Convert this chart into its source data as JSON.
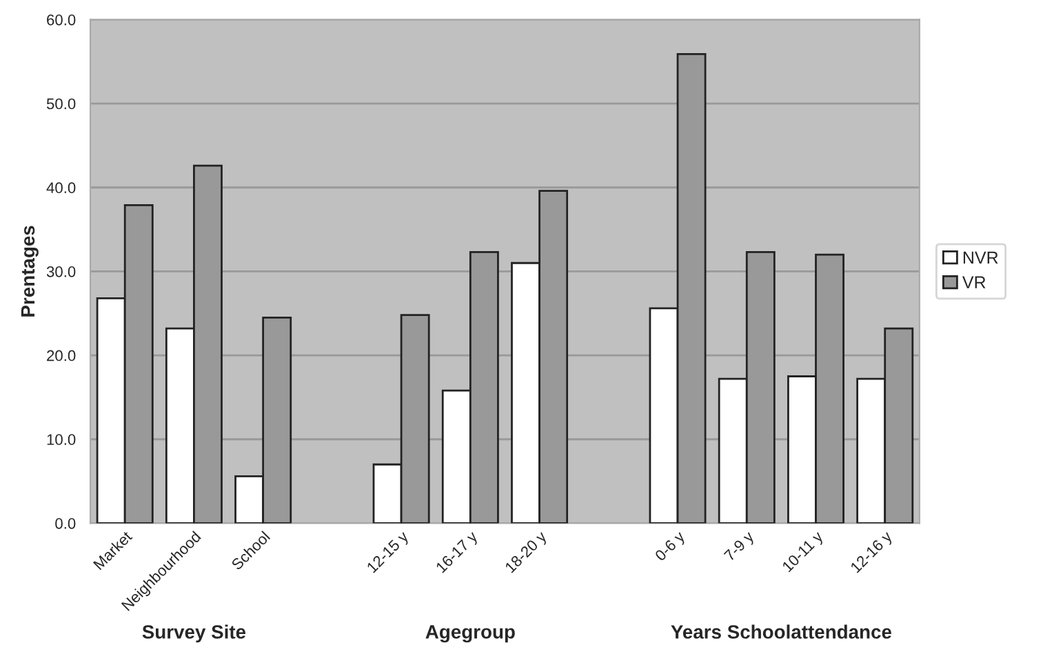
{
  "chart_data": {
    "type": "bar",
    "categories": [
      "Market",
      "Neighbourhood",
      "School",
      null,
      "12-15 y",
      "16-17 y",
      "18-20 y",
      null,
      "0-6 y",
      "7-9 y",
      "10-11 y",
      "12-16 y"
    ],
    "series": [
      {
        "name": "NVR",
        "color": "#ffffff",
        "values": [
          26.8,
          23.2,
          5.6,
          null,
          7.0,
          15.8,
          31.0,
          null,
          25.6,
          17.2,
          17.5,
          17.2
        ]
      },
      {
        "name": "VR",
        "color": "#999999",
        "values": [
          37.9,
          42.6,
          24.5,
          null,
          24.8,
          32.3,
          39.6,
          null,
          55.9,
          32.3,
          32.0,
          23.2
        ]
      }
    ],
    "ylabel": "Prentages",
    "annotations": [
      "Survey Site",
      "Agegroup",
      "Years Schoolattendance"
    ],
    "ylim": [
      0,
      60
    ],
    "yticks": [
      {
        "value": 0,
        "label": "0.0"
      },
      {
        "value": 10,
        "label": "10.0"
      },
      {
        "value": 20,
        "label": "20.0"
      },
      {
        "value": 30,
        "label": "30.0"
      },
      {
        "value": 40,
        "label": "40.0"
      },
      {
        "value": 50,
        "label": "50.0"
      },
      {
        "value": 60,
        "label": "60.0"
      }
    ],
    "grid": "y",
    "legend": "right"
  }
}
